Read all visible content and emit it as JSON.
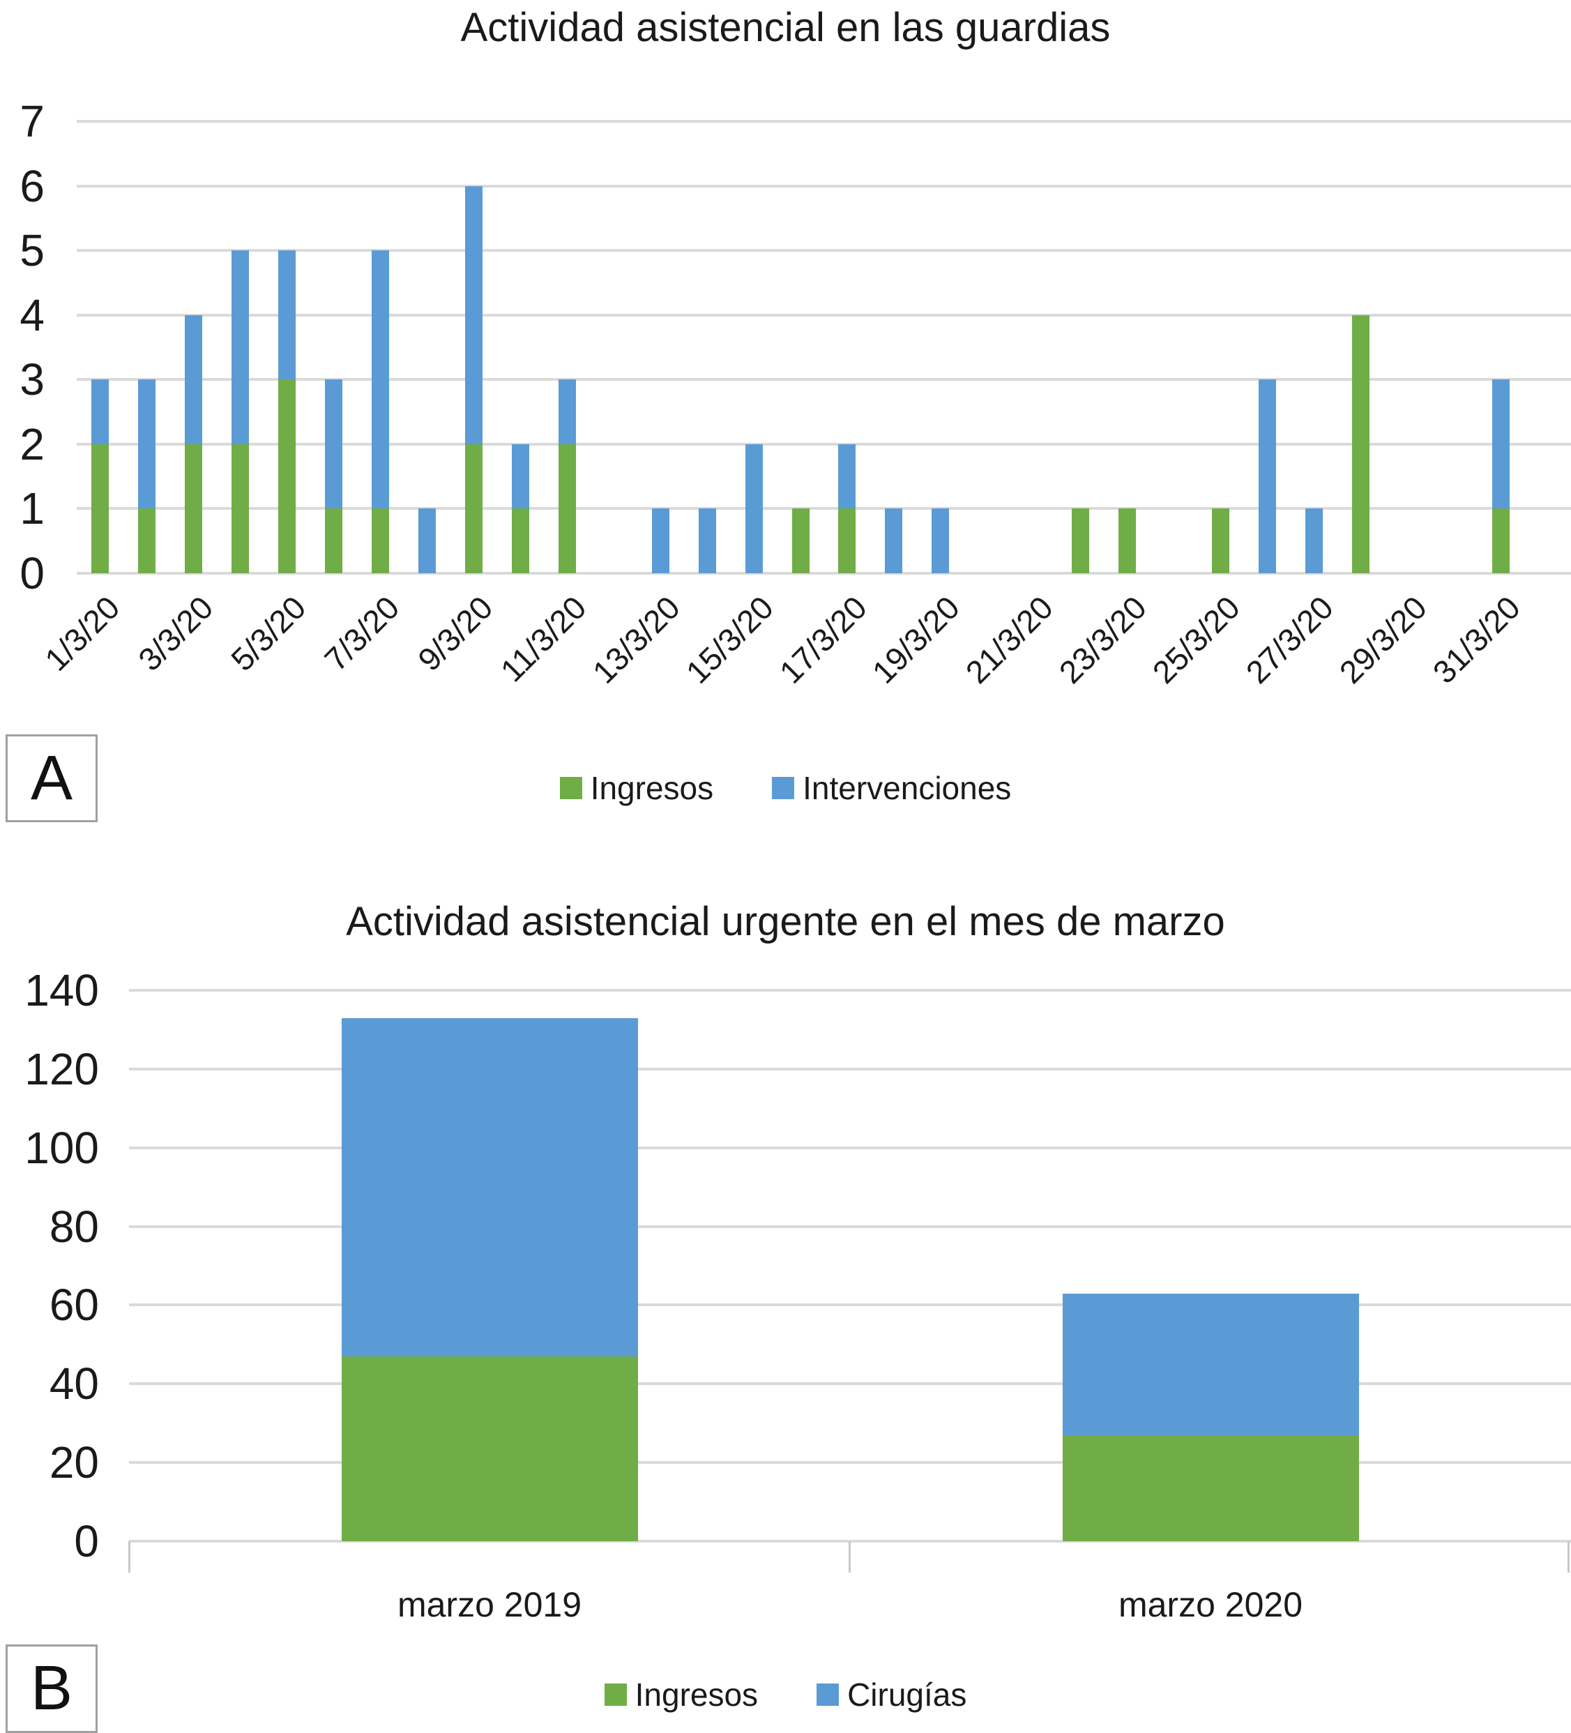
{
  "panels": {
    "a_label": "A",
    "b_label": "B"
  },
  "colors": {
    "ingresos_green": "#70ad47",
    "blue_series": "#5b9bd5",
    "gridline_gray": "#dadada"
  },
  "chart_data": [
    {
      "type": "bar",
      "stacked": true,
      "title": "Actividad asistencial en las guardias",
      "n_bars": 31,
      "x_tick_labels": [
        "1/3/20",
        "3/3/20",
        "5/3/20",
        "7/3/20",
        "9/3/20",
        "11/3/20",
        "13/3/20",
        "15/3/20",
        "17/3/20",
        "19/3/20",
        "21/3/20",
        "23/3/20",
        "25/3/20",
        "27/3/20",
        "29/3/20",
        "31/3/20"
      ],
      "series": [
        {
          "name": "Ingresos",
          "color": "#70ad47",
          "values": [
            2,
            1,
            2,
            2,
            3,
            1,
            1,
            0,
            2,
            1,
            2,
            0,
            0,
            0,
            0,
            1,
            1,
            0,
            0,
            0,
            0,
            1,
            1,
            0,
            1,
            0,
            0,
            4,
            0,
            0,
            1
          ]
        },
        {
          "name": "Intervenciones",
          "color": "#5b9bd5",
          "values": [
            1,
            2,
            2,
            3,
            2,
            2,
            4,
            1,
            4,
            1,
            1,
            0,
            1,
            1,
            2,
            0,
            1,
            1,
            1,
            0,
            0,
            0,
            0,
            0,
            0,
            3,
            1,
            0,
            0,
            0,
            2
          ]
        }
      ],
      "ylim": [
        0,
        7
      ],
      "yticks": [
        0,
        1,
        2,
        3,
        4,
        5,
        6,
        7
      ],
      "grid": true,
      "legend_position": "bottom"
    },
    {
      "type": "bar",
      "stacked": true,
      "title": "Actividad asistencial urgente en el mes de marzo",
      "categories": [
        "marzo 2019",
        "marzo 2020"
      ],
      "series": [
        {
          "name": "Ingresos",
          "color": "#70ad47",
          "values": [
            47,
            27
          ]
        },
        {
          "name": "Cirugías",
          "color": "#5b9bd5",
          "values": [
            86,
            36
          ]
        }
      ],
      "totals": [
        133,
        63
      ],
      "ylim": [
        0,
        140
      ],
      "yticks": [
        0,
        20,
        40,
        60,
        80,
        100,
        120,
        140
      ],
      "grid": true,
      "legend_position": "bottom"
    }
  ]
}
